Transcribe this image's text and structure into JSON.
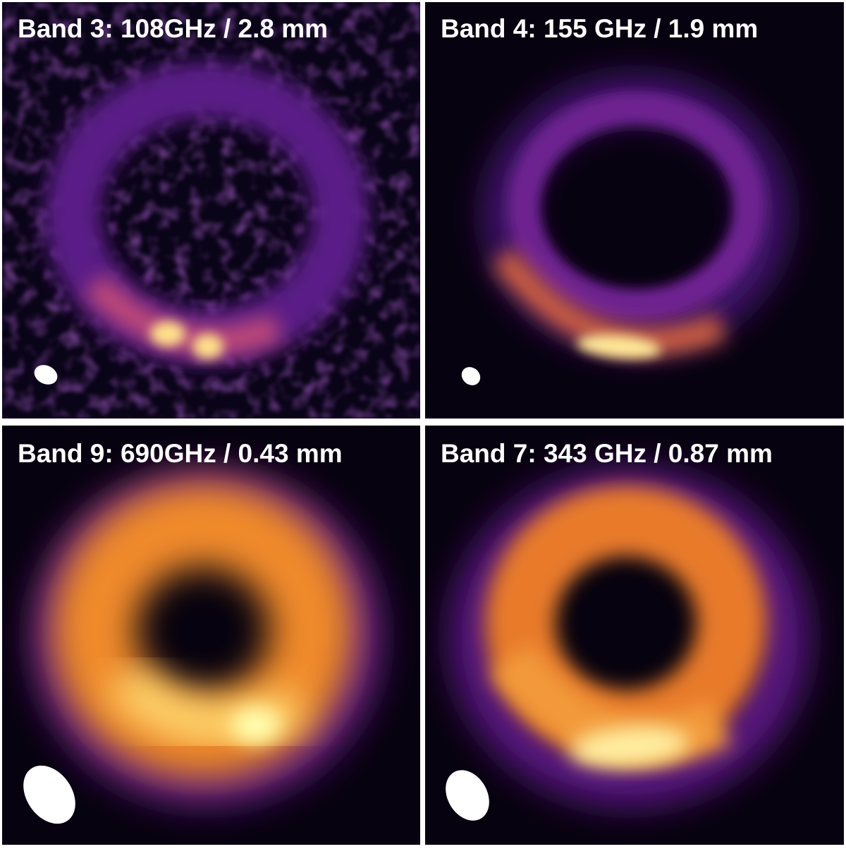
{
  "panels": [
    {
      "title": "Band 3: 108GHz / 2.8 mm"
    },
    {
      "title": "Band 4: 155 GHz / 1.9 mm"
    },
    {
      "title": "Band 9: 690GHz / 0.43 mm"
    },
    {
      "title": "Band 7: 343 GHz / 0.87 mm"
    }
  ]
}
